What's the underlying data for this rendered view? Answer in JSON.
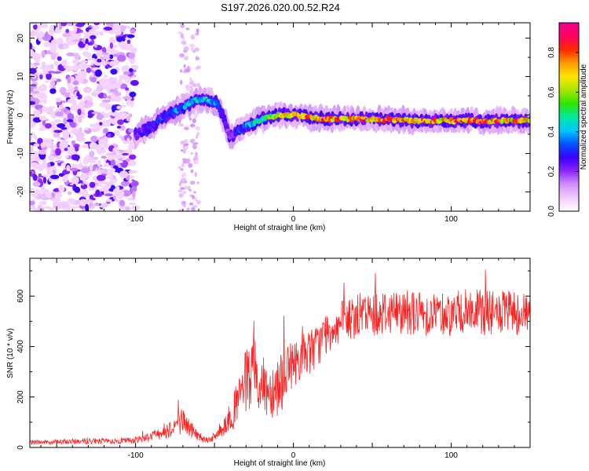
{
  "title": "S197.2026.020.00.52.R24",
  "chart_data": [
    {
      "type": "heatmap",
      "xlabel": "Height of straight line (km)",
      "ylabel": "Frequency (Hz)",
      "xlim": [
        -167,
        150
      ],
      "ylim": [
        -25,
        24
      ],
      "xticks": [
        "-100",
        "0",
        "100"
      ],
      "yticks": [
        "-20",
        "-10",
        "0",
        "10",
        "20"
      ],
      "colorbar": {
        "label": "Normalized spectral amplitude",
        "ticks": [
          "0.0",
          "0.2",
          "0.4",
          "0.6",
          "0.8"
        ],
        "range": [
          0,
          0.95
        ],
        "colors": [
          "#ffffff",
          "#f2ccff",
          "#d090ff",
          "#8c24ff",
          "#3b00ff",
          "#0055ff",
          "#00c8ff",
          "#00e8a0",
          "#2ee600",
          "#a8e600",
          "#ffe600",
          "#ff9a00",
          "#ff2a00",
          "#ff0060",
          "#f00090"
        ]
      },
      "ridge": {
        "x": [
          -100,
          -90,
          -80,
          -70,
          -62,
          -55,
          -48,
          -44,
          -40,
          -35,
          -30,
          -20,
          -10,
          0,
          20,
          50,
          80,
          100,
          120,
          150
        ],
        "freq": [
          -5,
          -3,
          0,
          2,
          4,
          4,
          3,
          -1,
          -6,
          -4,
          -3,
          -1,
          0,
          0,
          -1,
          -1,
          -1.5,
          -1.5,
          -1.5,
          -1.5
        ],
        "amplitude": [
          0.3,
          0.35,
          0.4,
          0.45,
          0.5,
          0.55,
          0.45,
          0.3,
          0.25,
          0.35,
          0.5,
          0.6,
          0.75,
          0.85,
          0.95,
          0.95,
          0.9,
          0.95,
          0.95,
          0.9
        ]
      },
      "noise_region_x": [
        -167,
        -100
      ]
    },
    {
      "type": "line",
      "xlabel": "Height of straight line (km)",
      "ylabel": "SNR (10 * v/v)",
      "xlim": [
        -167,
        150
      ],
      "ylim": [
        0,
        750
      ],
      "xticks": [
        "-100",
        "0",
        "100"
      ],
      "yticks": [
        "0",
        "200",
        "400",
        "600"
      ],
      "color": "#ff2020",
      "series": [
        {
          "name": "SNR",
          "x": [
            -167,
            -150,
            -130,
            -110,
            -100,
            -90,
            -80,
            -75,
            -70,
            -65,
            -60,
            -55,
            -50,
            -45,
            -40,
            -35,
            -30,
            -25,
            -20,
            -15,
            -10,
            -5,
            0,
            5,
            10,
            15,
            20,
            25,
            30,
            40,
            50,
            60,
            70,
            80,
            90,
            100,
            110,
            120,
            130,
            140,
            150
          ],
          "y": [
            20,
            22,
            25,
            25,
            30,
            45,
            70,
            90,
            110,
            70,
            45,
            30,
            40,
            80,
            120,
            180,
            260,
            280,
            240,
            230,
            250,
            300,
            330,
            360,
            380,
            400,
            450,
            480,
            490,
            520,
            530,
            540,
            540,
            530,
            535,
            530,
            540,
            535,
            530,
            535,
            530
          ]
        }
      ]
    }
  ]
}
